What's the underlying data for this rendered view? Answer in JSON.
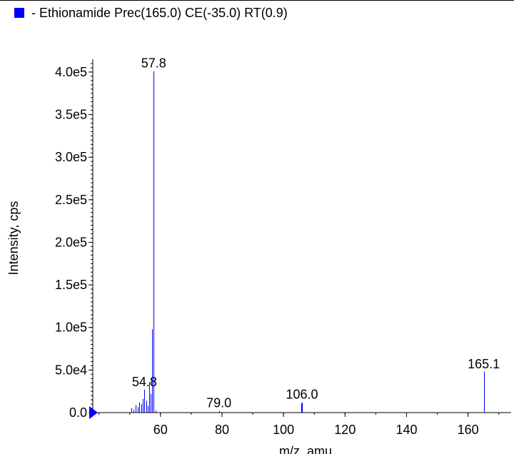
{
  "legend": {
    "label": "- Ethionamide Prec(165.0) CE(-35.0) RT(0.9)",
    "color": "#0000ff"
  },
  "chart_data": {
    "type": "bar",
    "title": "",
    "xlabel": "m/z, amu",
    "ylabel": "Intensity, cps",
    "xlim": [
      38,
      174
    ],
    "ylim": [
      0,
      410000
    ],
    "x_ticks": [
      60,
      80,
      100,
      120,
      140,
      160
    ],
    "x_tick_labels": [
      "60",
      "80",
      "100",
      "120",
      "140",
      "160"
    ],
    "y_ticks": [
      0,
      50000,
      100000,
      150000,
      200000,
      250000,
      300000,
      350000,
      400000
    ],
    "y_tick_labels": [
      "0.0",
      "5.0e4",
      "1.0e5",
      "1.5e5",
      "2.0e5",
      "2.5e5",
      "3.0e5",
      "3.5e5",
      "4.0e5"
    ],
    "series": [
      {
        "color": "#0000ff",
        "x": [
          50.5,
          51.3,
          52.0,
          52.6,
          53.2,
          53.8,
          54.3,
          54.8,
          55.3,
          55.8,
          56.3,
          56.8,
          57.3,
          57.8,
          58.5,
          79.0,
          105.8,
          106.0,
          165.1
        ],
        "values": [
          5500,
          3500,
          9000,
          6500,
          12000,
          10000,
          16000,
          27000,
          14000,
          8000,
          36000,
          22000,
          98000,
          401000,
          2500,
          2000,
          11000,
          12000,
          48000
        ]
      }
    ],
    "peak_labels": [
      {
        "x": 57.8,
        "y": 401000,
        "text": "57.8"
      },
      {
        "x": 54.8,
        "y": 27000,
        "text": "54.8"
      },
      {
        "x": 79.0,
        "y": 2000,
        "text": "79.0"
      },
      {
        "x": 106.0,
        "y": 12000,
        "text": "106.0"
      },
      {
        "x": 165.1,
        "y": 48000,
        "text": "165.1"
      }
    ],
    "axis_color": "#000000",
    "marker_color": "#0000ff",
    "grid": false
  }
}
